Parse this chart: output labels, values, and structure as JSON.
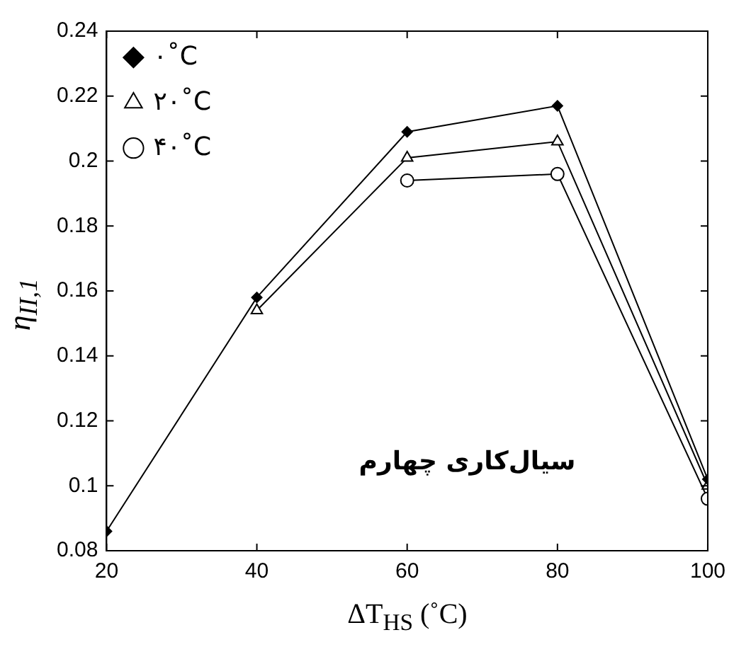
{
  "chart_data": {
    "type": "line",
    "xlabel": "ΔT$_{HS}$ (˚C)",
    "ylabel": "η$_{II,1}$",
    "x": [
      20,
      40,
      60,
      80,
      100
    ],
    "series": [
      {
        "name": "۰˚C",
        "color": "#000000",
        "marker": "diamond",
        "values": [
          0.086,
          0.158,
          0.209,
          0.217,
          0.102
        ]
      },
      {
        "name": "۲۰˚C",
        "color": "#000000",
        "marker": "triangle",
        "values": [
          null,
          0.154,
          0.201,
          0.206,
          0.1
        ]
      },
      {
        "name": "۴۰˚C",
        "color": "#000000",
        "marker": "circle",
        "values": [
          null,
          null,
          0.194,
          0.196,
          0.096
        ]
      }
    ],
    "xlim": [
      20,
      100
    ],
    "xticks": [
      20,
      40,
      60,
      80,
      100
    ],
    "ylim": [
      0.08,
      0.24
    ],
    "yticks": [
      0.08,
      0.1,
      0.12,
      0.14,
      0.16,
      0.18,
      0.2,
      0.22,
      0.24
    ],
    "legend": "top left",
    "annotations": [
      "سیال‌کاری چهارم"
    ]
  }
}
